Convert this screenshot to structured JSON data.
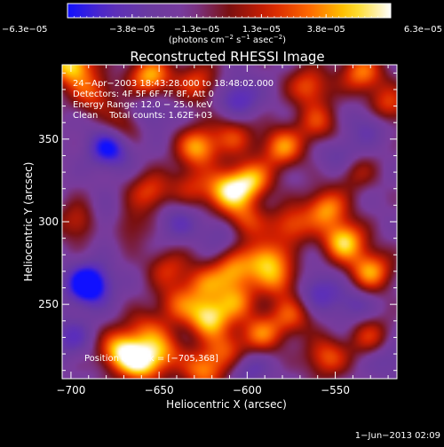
{
  "chart_data": {
    "type": "heatmap",
    "title": "Reconstructed RHESSI Image",
    "xlabel": "Heliocentric X (arcsec)",
    "ylabel": "Heliocentric Y (arcsec)",
    "xlim": [
      -705,
      -515
    ],
    "ylim": [
      205,
      395
    ],
    "x_ticks": [
      {
        "value": -700,
        "label": "−700"
      },
      {
        "value": -650,
        "label": "−650"
      },
      {
        "value": -600,
        "label": "−600"
      },
      {
        "value": -550,
        "label": "−550"
      }
    ],
    "y_ticks": [
      {
        "value": 250,
        "label": "250"
      },
      {
        "value": 300,
        "label": "300"
      },
      {
        "value": 350,
        "label": "350"
      }
    ],
    "colorbar": {
      "range": [
        -6.3e-05,
        6.3e-05
      ],
      "tick_labels": [
        "−6.3e−05",
        "−3.8e−05",
        "−1.3e−05",
        "1.3e−05",
        "3.8e−05",
        "6.3e−05"
      ],
      "colormap": "blue-purple-red-yellow-white",
      "unit_label_parts": [
        "(photons cm",
        "−2",
        " s",
        "−1",
        " asec",
        "−2",
        ")"
      ]
    },
    "info_lines": [
      "24−Apr−2003 18:43:28.000 to 18:48:02.000",
      "Detectors: 4F 5F 6F 7F 8F, Att 0",
      "Energy Range: 12.0 − 25.0 keV",
      "Clean    Total counts: 1.62E+03"
    ],
    "peak_label": "Position of Peak = [−705,368]",
    "peak_position": [
      -705,
      368
    ],
    "footer_date": "1−Jun−2013 02:09",
    "colors": {
      "background": "#000000",
      "foreground": "#ffffff",
      "cmap": [
        "#1010ff",
        "#5a2dbe",
        "#6a3aa0",
        "#7a3b9c",
        "#7a1010",
        "#d42000",
        "#ff6a00",
        "#ffd400",
        "#ffffff"
      ]
    },
    "sources": [
      {
        "x": -700,
        "y": 395,
        "v": 1.0
      },
      {
        "x": -688,
        "y": 378,
        "v": 0.55
      },
      {
        "x": -655,
        "y": 388,
        "v": 0.85
      },
      {
        "x": -628,
        "y": 384,
        "v": 0.55
      },
      {
        "x": -565,
        "y": 382,
        "v": 0.6
      },
      {
        "x": -535,
        "y": 390,
        "v": 0.7
      },
      {
        "x": -670,
        "y": 358,
        "v": 0.45
      },
      {
        "x": -560,
        "y": 360,
        "v": 0.5
      },
      {
        "x": -628,
        "y": 345,
        "v": 0.8
      },
      {
        "x": -608,
        "y": 352,
        "v": 0.5
      },
      {
        "x": -580,
        "y": 345,
        "v": 0.75
      },
      {
        "x": -520,
        "y": 370,
        "v": 0.6
      },
      {
        "x": -655,
        "y": 318,
        "v": 0.55
      },
      {
        "x": -632,
        "y": 322,
        "v": 0.4
      },
      {
        "x": -612,
        "y": 318,
        "v": 0.9
      },
      {
        "x": -598,
        "y": 325,
        "v": 0.85
      },
      {
        "x": -540,
        "y": 332,
        "v": 0.55
      },
      {
        "x": -695,
        "y": 300,
        "v": 0.5
      },
      {
        "x": -668,
        "y": 298,
        "v": 0.4
      },
      {
        "x": -603,
        "y": 300,
        "v": 0.7
      },
      {
        "x": -575,
        "y": 298,
        "v": 0.6
      },
      {
        "x": -555,
        "y": 308,
        "v": 0.75
      },
      {
        "x": -545,
        "y": 288,
        "v": 0.95
      },
      {
        "x": -530,
        "y": 270,
        "v": 0.8
      },
      {
        "x": -590,
        "y": 278,
        "v": 0.75
      },
      {
        "x": -582,
        "y": 265,
        "v": 0.6
      },
      {
        "x": -645,
        "y": 272,
        "v": 0.45
      },
      {
        "x": -625,
        "y": 262,
        "v": 0.55
      },
      {
        "x": -608,
        "y": 270,
        "v": 0.7
      },
      {
        "x": -640,
        "y": 250,
        "v": 0.5
      },
      {
        "x": -622,
        "y": 242,
        "v": 0.95
      },
      {
        "x": -606,
        "y": 252,
        "v": 0.6
      },
      {
        "x": -592,
        "y": 232,
        "v": 0.65
      },
      {
        "x": -575,
        "y": 243,
        "v": 0.55
      },
      {
        "x": -658,
        "y": 235,
        "v": 0.45
      },
      {
        "x": -672,
        "y": 222,
        "v": 0.9
      },
      {
        "x": -660,
        "y": 214,
        "v": 0.85
      },
      {
        "x": -648,
        "y": 222,
        "v": 0.6
      },
      {
        "x": -625,
        "y": 210,
        "v": 0.7
      },
      {
        "x": -612,
        "y": 222,
        "v": 0.55
      },
      {
        "x": -555,
        "y": 218,
        "v": 0.6
      },
      {
        "x": -530,
        "y": 230,
        "v": 0.5
      },
      {
        "x": -690,
        "y": 262,
        "v": -0.95
      },
      {
        "x": -678,
        "y": 345,
        "v": -0.7
      },
      {
        "x": -545,
        "y": 338,
        "v": -0.5
      },
      {
        "x": -605,
        "y": 375,
        "v": -0.45
      },
      {
        "x": -612,
        "y": 295,
        "v": -0.4
      },
      {
        "x": -680,
        "y": 300,
        "v": -0.35
      },
      {
        "x": -560,
        "y": 258,
        "v": -0.4
      },
      {
        "x": -700,
        "y": 230,
        "v": -0.35
      },
      {
        "x": -600,
        "y": 212,
        "v": -0.35
      },
      {
        "x": -530,
        "y": 360,
        "v": -0.35
      },
      {
        "x": -655,
        "y": 365,
        "v": -0.3
      },
      {
        "x": -640,
        "y": 300,
        "v": -0.3
      },
      {
        "x": -540,
        "y": 250,
        "v": -0.3
      },
      {
        "x": -520,
        "y": 218,
        "v": -0.3
      }
    ]
  }
}
